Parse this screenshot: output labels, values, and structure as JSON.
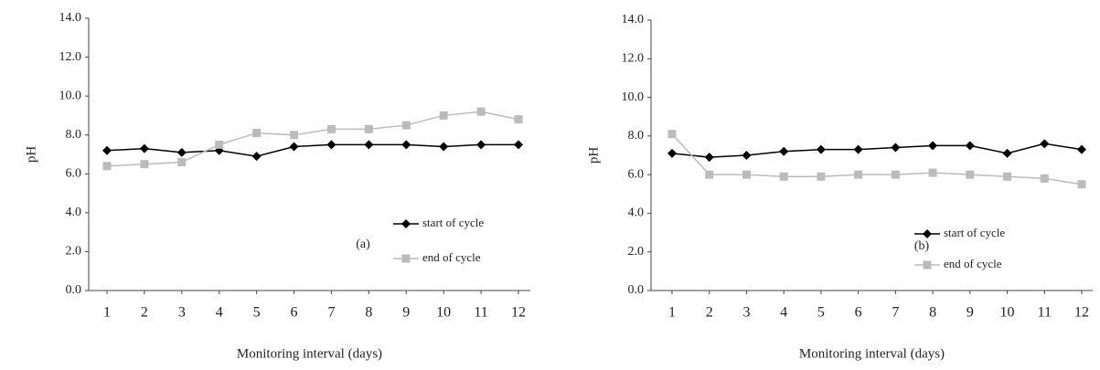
{
  "chart_data": [
    {
      "type": "line",
      "annotation": "(a)",
      "x_label": "Monitoring interval (days)",
      "y_label": "pH",
      "categories": [
        "1",
        "2",
        "3",
        "4",
        "5",
        "6",
        "7",
        "8",
        "9",
        "10",
        "11",
        "12"
      ],
      "series": [
        {
          "name": "start of cycle",
          "color": "#000000",
          "marker": "diamond",
          "values": [
            7.2,
            7.3,
            7.1,
            7.2,
            6.9,
            7.4,
            7.5,
            7.5,
            7.5,
            7.4,
            7.5,
            7.5
          ]
        },
        {
          "name": "end of cycle",
          "color": "#bbbbbb",
          "marker": "square",
          "values": [
            6.4,
            6.5,
            6.6,
            7.5,
            8.1,
            8.0,
            8.3,
            8.3,
            8.5,
            9.0,
            9.2,
            8.8
          ]
        }
      ],
      "ylim": [
        0,
        14
      ],
      "yticks": [
        {
          "value": 0,
          "label": "0.0"
        },
        {
          "value": 2,
          "label": "2.0"
        },
        {
          "value": 4,
          "label": "4.0"
        },
        {
          "value": 6,
          "label": "6.0"
        },
        {
          "value": 8,
          "label": "8.0"
        },
        {
          "value": 10,
          "label": "10.0"
        },
        {
          "value": 12,
          "label": "12.0"
        },
        {
          "value": 14,
          "label": "14.0"
        }
      ],
      "grid": false
    },
    {
      "type": "line",
      "annotation": "(b)",
      "x_label": "Monitoring interval (days)",
      "y_label": "pH",
      "categories": [
        "1",
        "2",
        "3",
        "4",
        "5",
        "6",
        "7",
        "8",
        "9",
        "10",
        "11",
        "12"
      ],
      "series": [
        {
          "name": "start of cycle",
          "color": "#000000",
          "marker": "diamond",
          "values": [
            7.1,
            6.9,
            7.0,
            7.2,
            7.3,
            7.3,
            7.4,
            7.5,
            7.5,
            7.1,
            7.6,
            7.3
          ]
        },
        {
          "name": "end of cycle",
          "color": "#bbbbbb",
          "marker": "square",
          "values": [
            8.1,
            6.0,
            6.0,
            5.9,
            5.9,
            6.0,
            6.0,
            6.1,
            6.0,
            5.9,
            5.8,
            5.5
          ]
        }
      ],
      "ylim": [
        0,
        14
      ],
      "yticks": [
        {
          "value": 0,
          "label": "0.0"
        },
        {
          "value": 2,
          "label": "2.0"
        },
        {
          "value": 4,
          "label": "4.0"
        },
        {
          "value": 6,
          "label": "6.0"
        },
        {
          "value": 8,
          "label": "8.0"
        },
        {
          "value": 10,
          "label": "10.0"
        },
        {
          "value": 12,
          "label": "12.0"
        },
        {
          "value": 14,
          "label": "14.0"
        }
      ],
      "grid": false
    }
  ]
}
